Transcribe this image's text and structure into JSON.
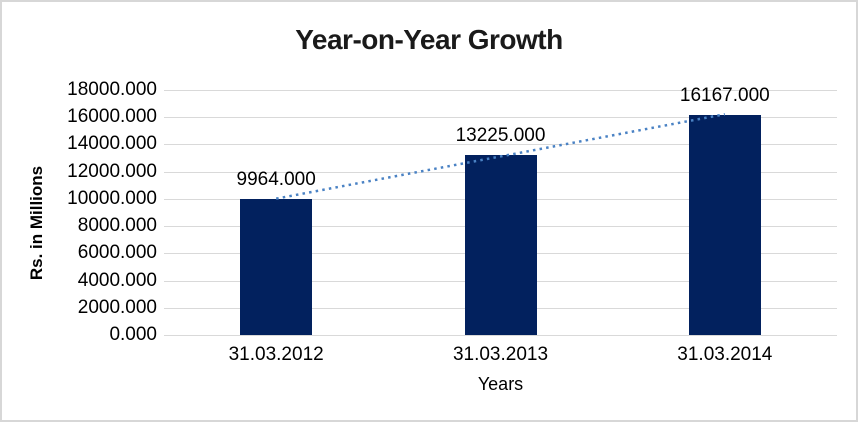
{
  "frame": {
    "background": "#FFFFFF",
    "border_color": "#D7D7D7"
  },
  "chart_data": {
    "type": "bar",
    "title": "Year-on-Year Growth",
    "categories": [
      "31.03.2012",
      "31.03.2013",
      "31.03.2014"
    ],
    "values": [
      9964.0,
      13225.0,
      16167.0
    ],
    "data_labels": [
      "9964.000",
      "13225.000",
      "16167.000"
    ],
    "xlabel": "Years",
    "ylabel": "Rs. in Millions",
    "ylim": [
      0,
      18000
    ],
    "y_tick_step": 2000,
    "y_tick_labels": [
      "0.000",
      "2000.000",
      "4000.000",
      "6000.000",
      "8000.000",
      "10000.000",
      "12000.000",
      "14000.000",
      "16000.000",
      "18000.000"
    ],
    "grid": true,
    "legend": "none",
    "bar_color": "#02215E",
    "gridline_color": "#D9D9D9",
    "label_color": "#000000",
    "title_color": "#1A1A1A",
    "trendline": {
      "type": "linear",
      "style": "dotted",
      "color": "#4A82C4"
    }
  }
}
